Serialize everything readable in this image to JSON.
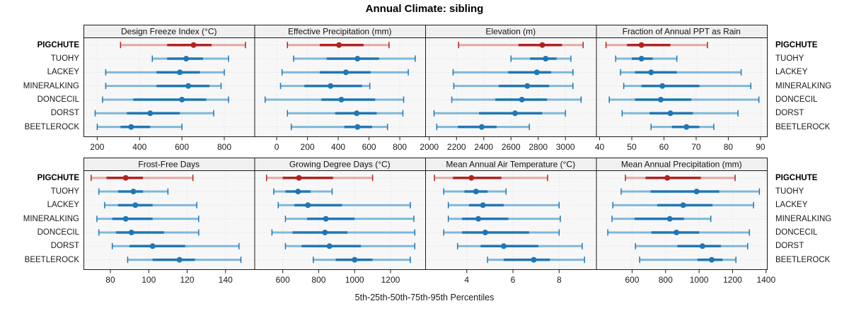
{
  "title": "Annual Climate: sibling",
  "caption": "5th-25th-50th-75th-95th Percentiles",
  "sites": [
    "PIGCHUTE",
    "TUOHY",
    "LACKEY",
    "MINERALKING",
    "DONCECIL",
    "DORST",
    "BEETLEROCK"
  ],
  "highlight_site": "PIGCHUTE",
  "percentile_labels": [
    "5th",
    "25th",
    "50th",
    "75th",
    "95th"
  ],
  "colors": {
    "highlight": "#B22222",
    "highlight_light": "#E4A7A3",
    "normal": "#1F77B4",
    "normal_light": "#7FB8D9",
    "grid": "#D9D9D9",
    "strip_bg": "#F0F0F0",
    "panel_bg": "#F7F7F7",
    "border": "#1A1A1A",
    "tick": "#1A1A1A"
  },
  "chart_data": {
    "type": "scatter",
    "variant": "trellis-percentile-dotplot",
    "rows": 2,
    "cols": 4,
    "legend_position": "none",
    "grid": "dotted",
    "panels": [
      {
        "title": "Design Freeze Index (°C)",
        "xlim": [
          135,
          942
        ],
        "ticks": [
          200,
          400,
          600,
          800
        ],
        "values": [
          [
            310,
            530,
            655,
            740,
            900
          ],
          [
            460,
            530,
            620,
            700,
            820
          ],
          [
            240,
            480,
            590,
            685,
            800
          ],
          [
            240,
            480,
            630,
            730,
            785
          ],
          [
            225,
            370,
            600,
            715,
            820
          ],
          [
            190,
            340,
            450,
            590,
            750
          ],
          [
            200,
            310,
            360,
            450,
            600
          ]
        ]
      },
      {
        "title": "Effective Precipitation (mm)",
        "xlim": [
          -145,
          965
        ],
        "ticks": [
          0,
          200,
          400,
          600,
          800
        ],
        "values": [
          [
            70,
            280,
            405,
            565,
            730
          ],
          [
            110,
            325,
            525,
            665,
            900
          ],
          [
            35,
            280,
            450,
            610,
            855
          ],
          [
            25,
            180,
            350,
            555,
            605
          ],
          [
            -75,
            290,
            420,
            640,
            825
          ],
          [
            70,
            380,
            520,
            650,
            820
          ],
          [
            95,
            440,
            525,
            620,
            720
          ]
        ]
      },
      {
        "title": "Elevation (m)",
        "xlim": [
          1970,
          3225
        ],
        "ticks": [
          2000,
          2200,
          2400,
          2600,
          2800,
          3000
        ],
        "values": [
          [
            2215,
            2655,
            2830,
            2975,
            3130
          ],
          [
            2600,
            2740,
            2855,
            2935,
            3040
          ],
          [
            2175,
            2580,
            2790,
            2895,
            3055
          ],
          [
            2180,
            2510,
            2720,
            2880,
            3055
          ],
          [
            2165,
            2485,
            2680,
            2865,
            3115
          ],
          [
            2035,
            2365,
            2630,
            2830,
            3000
          ],
          [
            2055,
            2210,
            2385,
            2495,
            2735
          ]
        ]
      },
      {
        "title": "Fraction of Annual PPT as Rain",
        "xlim": [
          38.9,
          92
        ],
        "ticks": [
          40,
          50,
          60,
          70,
          80,
          90
        ],
        "values": [
          [
            42,
            48.5,
            53,
            62,
            73.5
          ],
          [
            45,
            50,
            53,
            56.5,
            64
          ],
          [
            46.5,
            51,
            56,
            64,
            84
          ],
          [
            47.5,
            53,
            59.5,
            71,
            87
          ],
          [
            43,
            51,
            59,
            68.5,
            89.5
          ],
          [
            47,
            55.5,
            62,
            69,
            83
          ],
          [
            56,
            62.5,
            67,
            71,
            75.5
          ]
        ]
      },
      {
        "title": "Frost-Free Days",
        "xlim": [
          66,
          155
        ],
        "ticks": [
          80,
          100,
          120,
          140
        ],
        "values": [
          [
            70,
            78,
            88,
            97,
            123
          ],
          [
            74,
            84,
            92,
            97,
            110
          ],
          [
            77,
            84,
            93,
            102,
            125
          ],
          [
            73,
            81,
            88,
            102,
            126
          ],
          [
            74,
            83,
            91,
            108,
            126
          ],
          [
            81,
            90,
            102,
            119,
            147
          ],
          [
            89,
            102,
            116,
            124,
            148
          ]
        ]
      },
      {
        "title": "Growing Degree Days (°C)",
        "xlim": [
          442,
          1393
        ],
        "ticks": [
          600,
          800,
          1000,
          1200
        ],
        "values": [
          [
            510,
            600,
            690,
            880,
            1100
          ],
          [
            550,
            615,
            685,
            755,
            875
          ],
          [
            575,
            665,
            740,
            930,
            1310
          ],
          [
            615,
            735,
            840,
            1000,
            1330
          ],
          [
            540,
            655,
            835,
            960,
            1335
          ],
          [
            615,
            705,
            860,
            1035,
            1335
          ],
          [
            770,
            895,
            1000,
            1100,
            1310
          ]
        ]
      },
      {
        "title": "Mean Annual Air Temperature (°C)",
        "xlim": [
          2.2,
          9.6
        ],
        "ticks": [
          4,
          6,
          8
        ],
        "values": [
          [
            2.6,
            3.4,
            4.2,
            5.5,
            7.5
          ],
          [
            3.0,
            3.9,
            4.4,
            4.9,
            5.7
          ],
          [
            3.2,
            4.1,
            4.7,
            5.6,
            8.0
          ],
          [
            3.2,
            3.8,
            4.5,
            5.8,
            8.05
          ],
          [
            3.0,
            3.8,
            4.8,
            6.7,
            8.0
          ],
          [
            3.6,
            4.6,
            5.6,
            7.1,
            9.0
          ],
          [
            4.9,
            5.6,
            6.9,
            7.6,
            9.1
          ]
        ]
      },
      {
        "title": "Mean Annual Precipitation (mm)",
        "xlim": [
          385,
          1405
        ],
        "ticks": [
          600,
          800,
          1000,
          1200,
          1400
        ],
        "values": [
          [
            560,
            680,
            810,
            1010,
            1215
          ],
          [
            535,
            710,
            985,
            1120,
            1360
          ],
          [
            485,
            750,
            905,
            1080,
            1325
          ],
          [
            480,
            615,
            825,
            910,
            1070
          ],
          [
            455,
            715,
            865,
            1000,
            1300
          ],
          [
            620,
            870,
            1020,
            1130,
            1290
          ],
          [
            645,
            990,
            1075,
            1140,
            1220
          ]
        ]
      }
    ]
  }
}
